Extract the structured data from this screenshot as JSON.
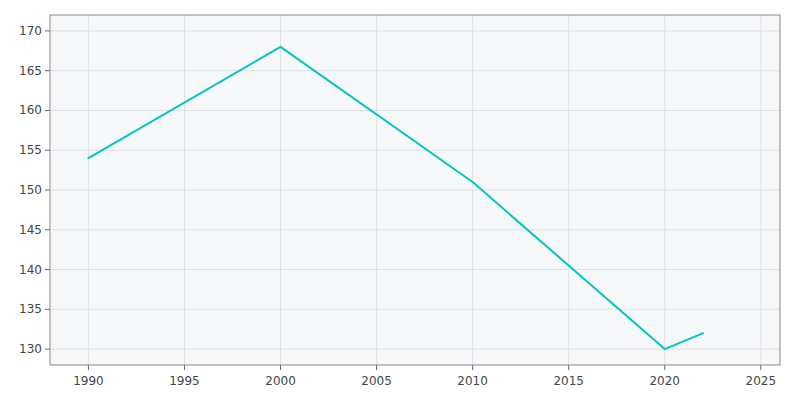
{
  "chart_data": {
    "type": "line",
    "x": [
      1990,
      2000,
      2010,
      2020,
      2021,
      2022
    ],
    "values": [
      154,
      168,
      151,
      130,
      131,
      132
    ],
    "color": "#00C5C8",
    "xlim": [
      1988,
      2026
    ],
    "ylim": [
      128,
      172
    ],
    "xticks": [
      1990,
      1995,
      2000,
      2005,
      2010,
      2015,
      2020,
      2025
    ],
    "yticks": [
      130,
      135,
      140,
      145,
      150,
      155,
      160,
      165,
      170
    ],
    "grid": true
  }
}
